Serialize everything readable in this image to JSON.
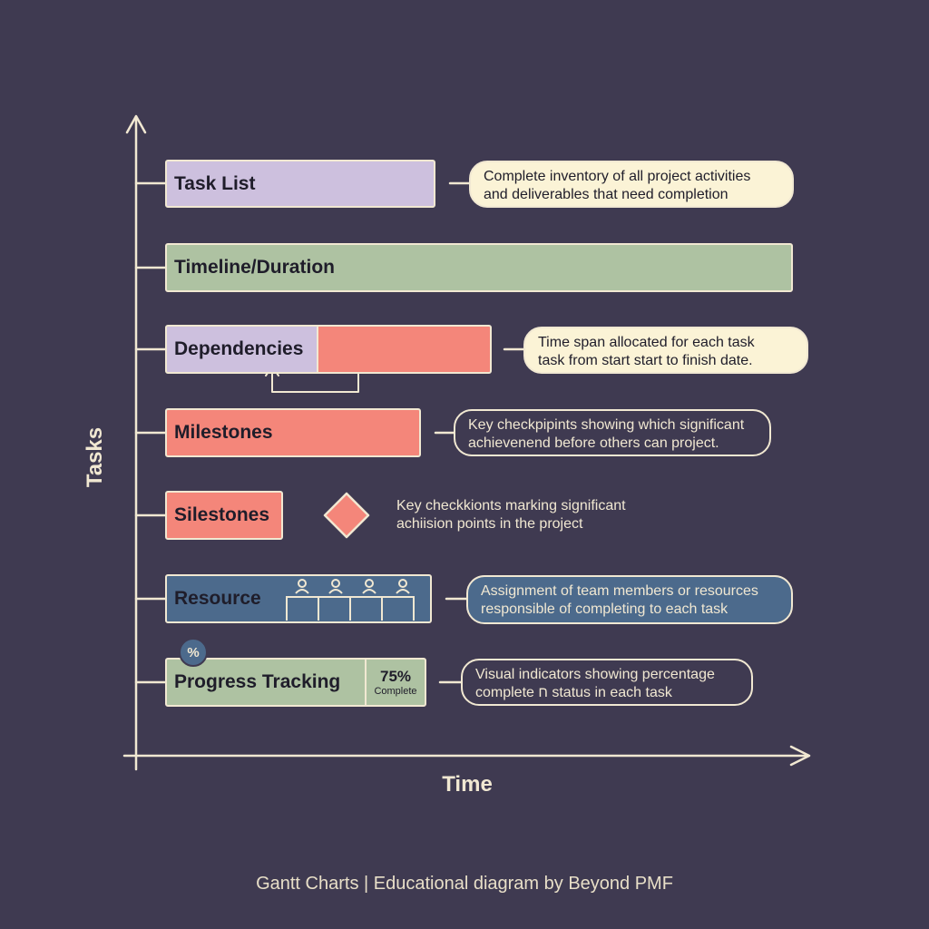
{
  "y_axis_label": "Tasks",
  "x_axis_label": "Time",
  "footer": "Gantt Charts | Educational diagram by Beyond PMF",
  "colors": {
    "background": "#3f3a51",
    "axis": "#f1e8d2",
    "lavender": "#cdc0de",
    "sage": "#aec2a2",
    "coral": "#f4867a",
    "steel_blue": "#4c6a8c",
    "cream": "#fbf3d6"
  },
  "rows": [
    {
      "label": "Task List",
      "note_lines": [
        "Complete inventory of all project activities",
        "and deliverables that need completion"
      ]
    },
    {
      "label": "Timeline/Duration",
      "note_lines": []
    },
    {
      "label": "Dependencies",
      "note_lines": [
        "Time span allocated for each task",
        "task from start start to finish date."
      ]
    },
    {
      "label": "Milestones",
      "note_lines": [
        "Key checkpipints showing which significant",
        "achievenend before others can project."
      ]
    },
    {
      "label": "Silestones",
      "note_lines": [
        "Key checkkionts marking significant",
        "achiision points in the project"
      ]
    },
    {
      "label": "Resource",
      "note_lines": [
        "Assignment of team members or resources",
        "responsible of completing to each task"
      ]
    },
    {
      "label": "Progress Tracking",
      "note_lines": [
        "Visual indicators showing percentage",
        "complete ח status in each task"
      ],
      "badge": "%",
      "progress_value": "75%",
      "progress_caption": "Complete"
    }
  ]
}
